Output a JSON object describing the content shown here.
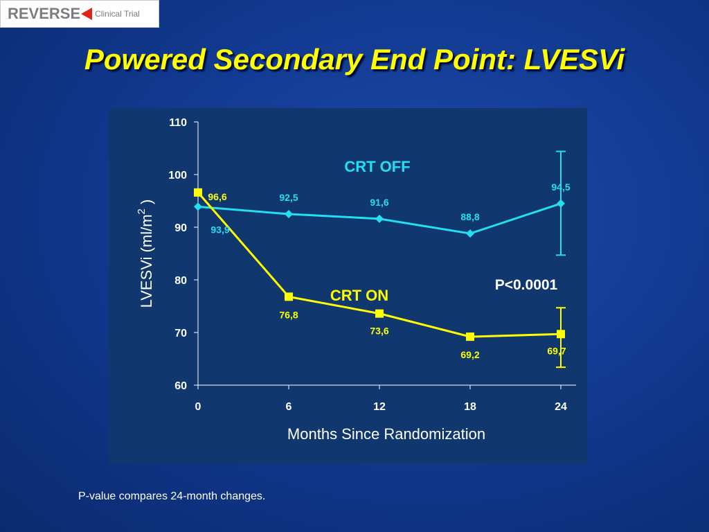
{
  "logo": {
    "main": "REVERSE",
    "sub": "Clinical Trial"
  },
  "title": "Powered Secondary End Point: LVESVi",
  "footnote": "P-value compares 24-month changes.",
  "chart_data": {
    "type": "line",
    "x": [
      0,
      6,
      12,
      18,
      24
    ],
    "x_tick_labels": [
      "0",
      "6",
      "12",
      "18",
      "24"
    ],
    "y_ticks": [
      60,
      70,
      80,
      90,
      100,
      110
    ],
    "ylim": [
      60,
      110
    ],
    "xlabel": "Months Since Randomization",
    "ylabel": "LVESVi (ml/m",
    "ylabel_sup": "2",
    "ylabel_end": ")",
    "annotation": "P<0.0001",
    "grid": false,
    "series": [
      {
        "name": "CRT OFF",
        "values": [
          93.9,
          92.5,
          91.6,
          88.8,
          94.5
        ],
        "data_labels": [
          "93,9",
          "92,5",
          "91,6",
          "88,8",
          "94,5"
        ],
        "color": "#22e0f0",
        "marker": "diamond",
        "error_bar_24": [
          84.7,
          104.4
        ]
      },
      {
        "name": "CRT ON",
        "values": [
          96.6,
          76.8,
          73.6,
          69.2,
          69.7
        ],
        "data_labels": [
          "96,6",
          "76,8",
          "73,6",
          "69,2",
          "69,7"
        ],
        "color": "#ffff00",
        "marker": "square",
        "error_bar_24": [
          63.4,
          74.7
        ]
      }
    ]
  }
}
